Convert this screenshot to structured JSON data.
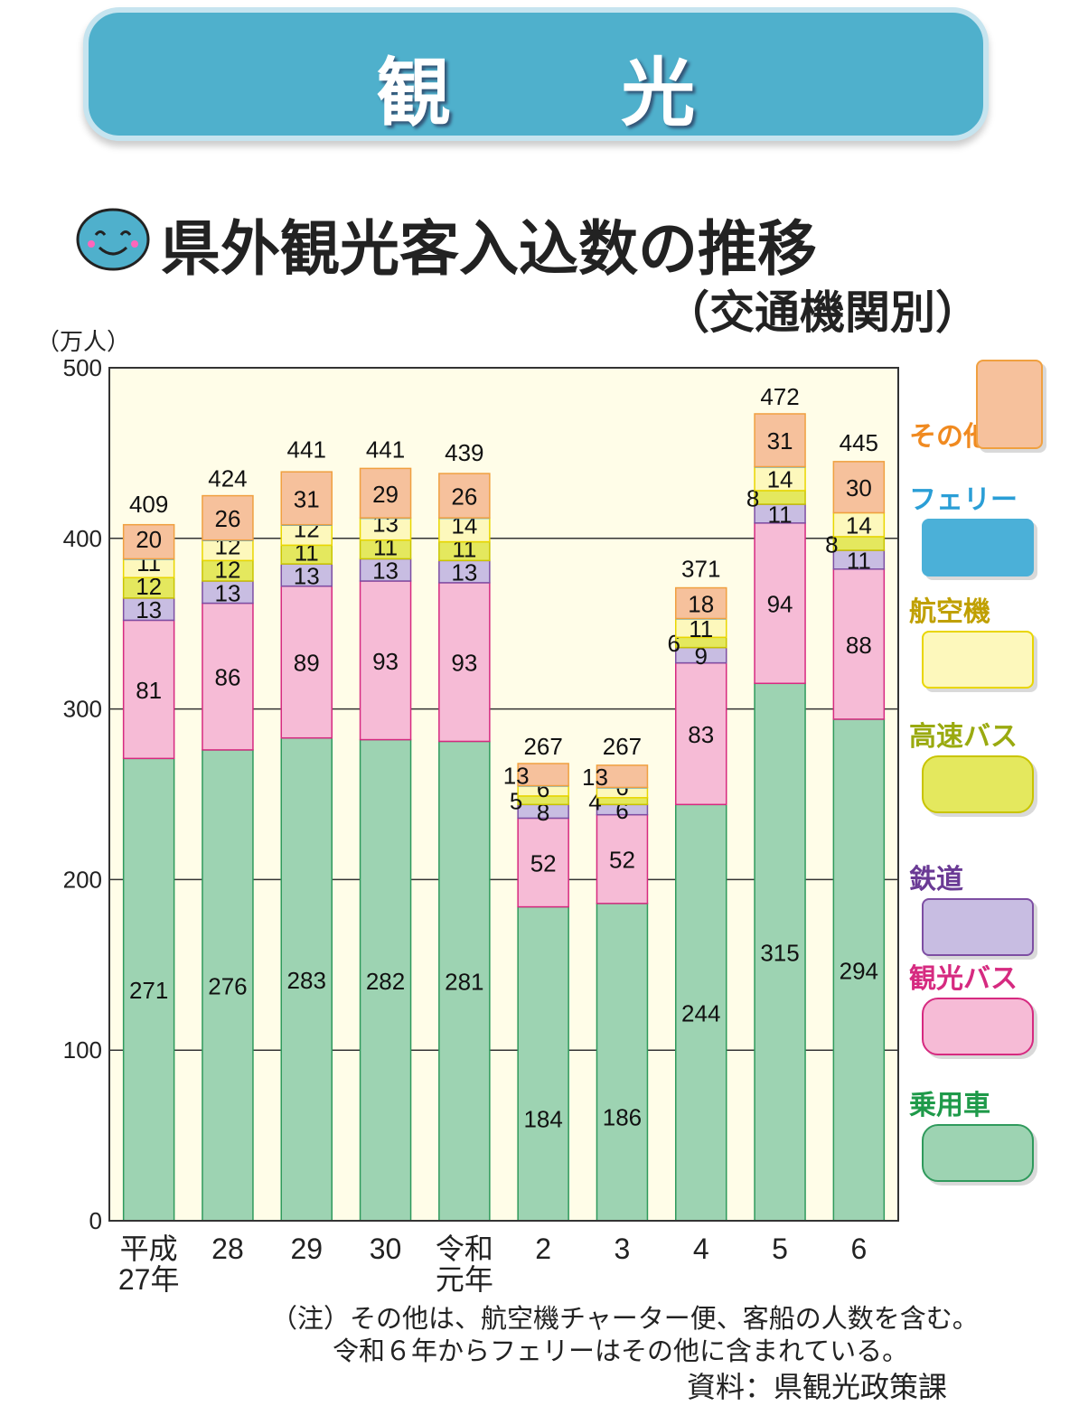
{
  "header": {
    "section_title": "観 光"
  },
  "chart_data": {
    "type": "bar",
    "stacked": true,
    "title": "県外観光客入込数の推移",
    "subtitle": "（交通機関別）",
    "ylabel": "（万人）",
    "ylim": [
      0,
      500
    ],
    "yticks": [
      0,
      100,
      200,
      300,
      400,
      500
    ],
    "grid": true,
    "legend_position": "right",
    "categories": [
      [
        "平成",
        "27年"
      ],
      [
        "28"
      ],
      [
        "29"
      ],
      [
        "30"
      ],
      [
        "令和",
        "元年"
      ],
      [
        "2"
      ],
      [
        "3"
      ],
      [
        "4"
      ],
      [
        "5"
      ],
      [
        "6"
      ]
    ],
    "totals": [
      409,
      424,
      441,
      441,
      439,
      267,
      267,
      371,
      472,
      445
    ],
    "series": [
      {
        "name": "乗用車",
        "color": "#9dd3b2",
        "border": "#2f9a5c",
        "label_color": "#1f9a4a",
        "values": [
          271,
          276,
          283,
          282,
          281,
          184,
          186,
          244,
          315,
          294
        ]
      },
      {
        "name": "観光バス",
        "color": "#f6bbd6",
        "border": "#d62a80",
        "label_color": "#d62a80",
        "values": [
          81,
          86,
          89,
          93,
          93,
          52,
          52,
          83,
          94,
          88
        ]
      },
      {
        "name": "鉄道",
        "color": "#c8bde2",
        "border": "#7d4ea3",
        "label_color": "#6a3a95",
        "values": [
          13,
          13,
          13,
          13,
          13,
          8,
          6,
          9,
          11,
          11
        ]
      },
      {
        "name": "高速バス",
        "color": "#e4e85e",
        "border": "#c9c400",
        "label_color": "#9aaa10",
        "values": [
          12,
          12,
          11,
          11,
          11,
          5,
          4,
          6,
          8,
          8
        ]
      },
      {
        "name": "航空機",
        "color": "#fdf8bc",
        "border": "#e9d600",
        "label_color": "#c0a000",
        "values": [
          11,
          12,
          12,
          13,
          14,
          6,
          6,
          11,
          14,
          14
        ]
      },
      {
        "name": "フェリー",
        "color": "#4bb0d8",
        "border": "#4bb0d8",
        "label_color": "#2a9ed6",
        "values": [
          null,
          null,
          null,
          null,
          null,
          null,
          null,
          null,
          null,
          null
        ],
        "line_shown": [
          true,
          true,
          true,
          true,
          true,
          true,
          true,
          true,
          true,
          false
        ]
      },
      {
        "name": "その他",
        "color": "#f6c19c",
        "border": "#f0a040",
        "label_color": "#f08a20",
        "values": [
          20,
          26,
          31,
          29,
          26,
          13,
          13,
          18,
          31,
          30
        ]
      }
    ]
  },
  "notes": {
    "line1": "（注）その他は、航空機チャーター便、客船の人数を含む。",
    "line2": "令和６年からフェリーはその他に含まれている。",
    "source": "資料：県観光政策課"
  }
}
